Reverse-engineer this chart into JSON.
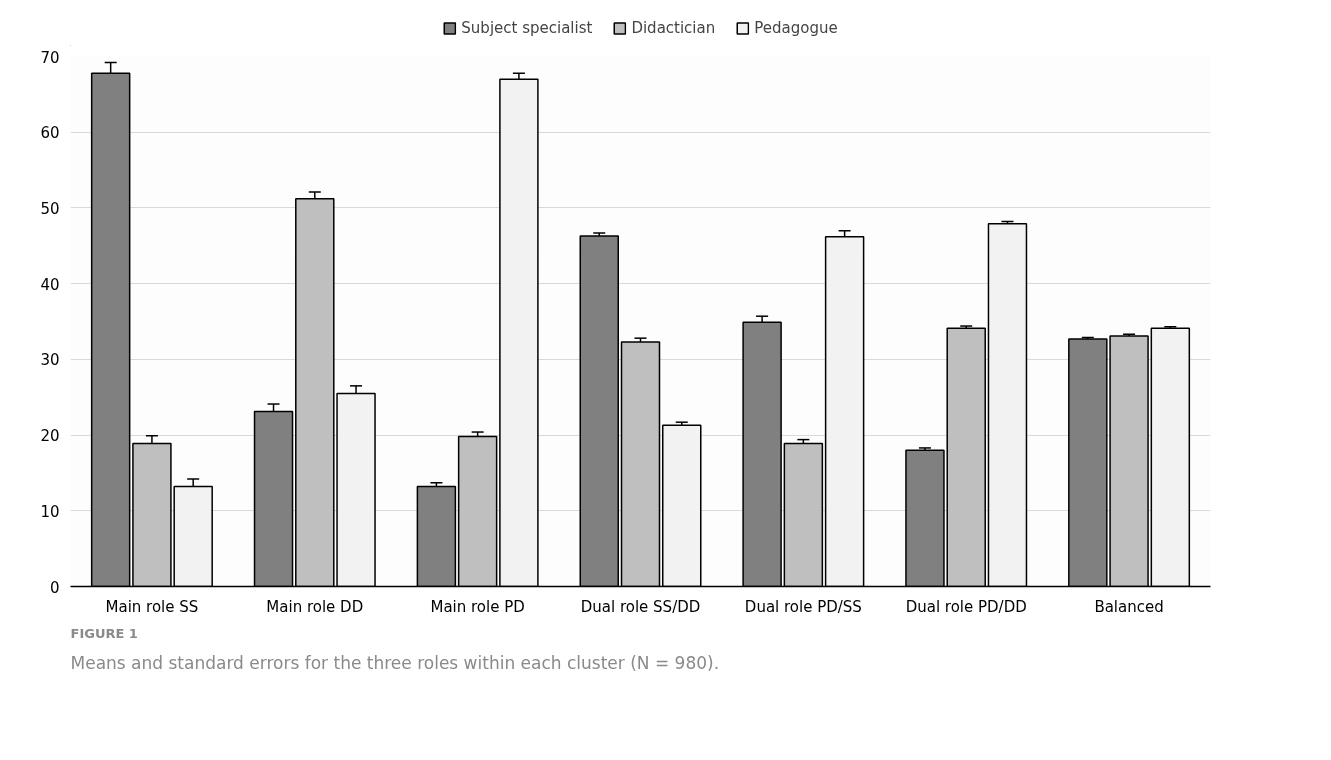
{
  "chart_data": {
    "type": "bar",
    "categories": [
      "Main role SS",
      "Main role DD",
      "Main role PD",
      "Dual role SS/DD",
      "Dual role PD/SS",
      "Dual role PD/DD",
      "Balanced"
    ],
    "series": [
      {
        "name": "Subject specialist",
        "color": "#808080",
        "values": [
          67.8,
          23.1,
          13.2,
          46.3,
          34.9,
          18.0,
          32.7
        ],
        "errors": [
          1.4,
          1.0,
          0.5,
          0.4,
          0.8,
          0.3,
          0.2
        ]
      },
      {
        "name": "Didactician",
        "color": "#bfbfbf",
        "values": [
          18.9,
          51.2,
          19.8,
          32.3,
          18.9,
          34.1,
          33.1
        ],
        "errors": [
          1.0,
          0.9,
          0.6,
          0.5,
          0.5,
          0.3,
          0.2
        ]
      },
      {
        "name": "Pedagogue",
        "color": "#f2f2f2",
        "values": [
          13.2,
          25.5,
          67.0,
          21.3,
          46.2,
          47.9,
          34.1
        ],
        "errors": [
          1.0,
          1.0,
          0.8,
          0.4,
          0.8,
          0.3,
          0.2
        ]
      }
    ],
    "ylim": [
      0,
      70
    ],
    "yticks": [
      0,
      10,
      20,
      30,
      40,
      50,
      60,
      70
    ],
    "grid": "y",
    "legend": "top",
    "annotations": [
      "FIGURE 1",
      "Means and standard errors for the three roles within each cluster (N = 980)."
    ]
  }
}
